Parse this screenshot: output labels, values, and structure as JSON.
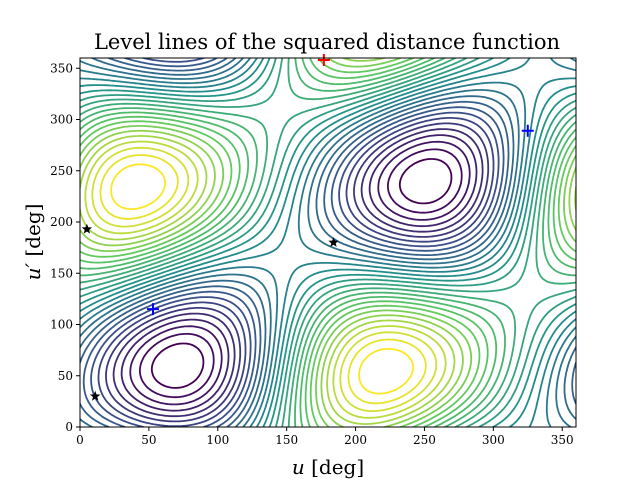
{
  "chart_data": {
    "type": "contour",
    "title": "Level lines of the squared distance function",
    "xlabel_var": "u",
    "xlabel_unit": " [deg]",
    "ylabel_var": "u′",
    "ylabel_unit": " [deg]",
    "xlim": [
      0,
      360
    ],
    "ylim": [
      0,
      360
    ],
    "xticks": [
      0,
      50,
      100,
      150,
      200,
      250,
      300,
      350
    ],
    "yticks": [
      0,
      50,
      100,
      150,
      200,
      250,
      300,
      350
    ],
    "colormap": [
      "#440154",
      "#3b528b",
      "#21918c",
      "#5ec962",
      "#fde725"
    ],
    "grid": false,
    "markers": [
      {
        "kind": "minimum",
        "symbol": "+",
        "color": "#0000ff",
        "x": 53,
        "y": 115
      },
      {
        "kind": "minimum",
        "symbol": "+",
        "color": "#0000ff",
        "x": 325,
        "y": 289
      },
      {
        "kind": "maximum",
        "symbol": "+",
        "color": "#ff0000",
        "x": 177,
        "y": 358
      },
      {
        "kind": "saddle",
        "symbol": "★",
        "color": "#000000",
        "x": 5,
        "y": 193
      },
      {
        "kind": "saddle",
        "symbol": "★",
        "color": "#000000",
        "x": 11,
        "y": 30
      },
      {
        "kind": "saddle",
        "symbol": "★",
        "color": "#000000",
        "x": 184,
        "y": 180
      }
    ]
  }
}
